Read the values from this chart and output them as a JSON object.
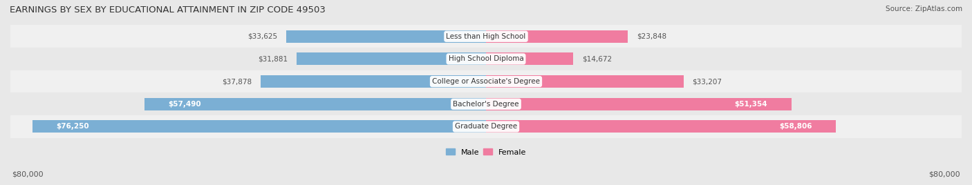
{
  "title": "EARNINGS BY SEX BY EDUCATIONAL ATTAINMENT IN ZIP CODE 49503",
  "source": "Source: ZipAtlas.com",
  "categories": [
    "Less than High School",
    "High School Diploma",
    "College or Associate's Degree",
    "Bachelor's Degree",
    "Graduate Degree"
  ],
  "male_values": [
    33625,
    31881,
    37878,
    57490,
    76250
  ],
  "female_values": [
    23848,
    14672,
    33207,
    51354,
    58806
  ],
  "max_value": 80000,
  "male_color": "#7bafd4",
  "female_color": "#f07ca0",
  "bg_color": "#e8e8e8",
  "bar_bg_color": "#d8d8d8",
  "row_bg_colors": [
    "#f0f0f0",
    "#e8e8e8"
  ],
  "label_bg_color": "#ffffff",
  "axis_label": "$80,000",
  "bar_height": 0.55,
  "legend_male": "Male",
  "legend_female": "Female"
}
